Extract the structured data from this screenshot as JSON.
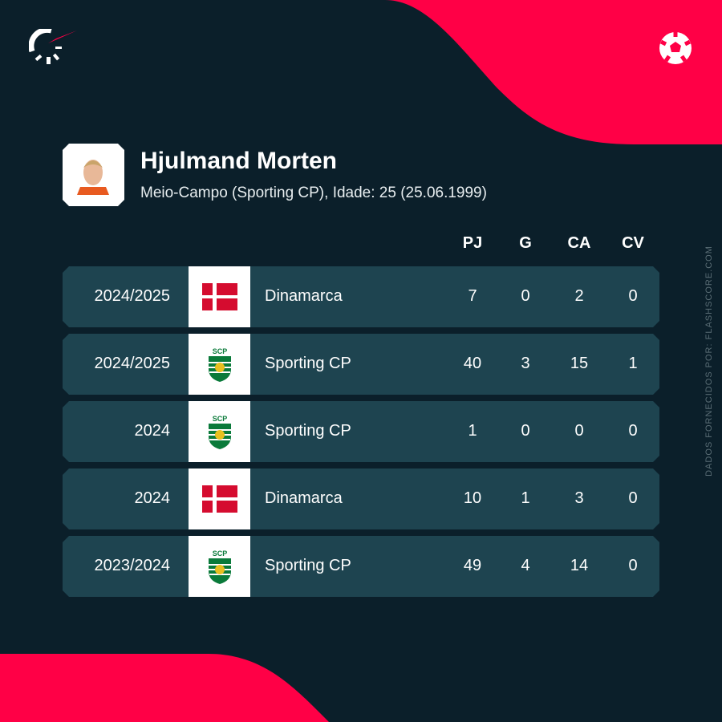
{
  "brand": {
    "accent": "#ff0046",
    "logo": "flashscore-logo",
    "sport_icon": "football-icon"
  },
  "player": {
    "name": "Hjulmand Morten",
    "details": "Meio-Campo (Sporting CP), Idade: 25 (25.06.1999)"
  },
  "columns": [
    "PJ",
    "G",
    "CA",
    "CV"
  ],
  "rows": [
    {
      "season": "2024/2025",
      "team": "Dinamarca",
      "logo": "denmark-flag",
      "PJ": "7",
      "G": "0",
      "CA": "2",
      "CV": "0"
    },
    {
      "season": "2024/2025",
      "team": "Sporting CP",
      "logo": "sporting-cp-crest",
      "PJ": "40",
      "G": "3",
      "CA": "15",
      "CV": "1"
    },
    {
      "season": "2024",
      "team": "Sporting CP",
      "logo": "sporting-cp-crest",
      "PJ": "1",
      "G": "0",
      "CA": "0",
      "CV": "0"
    },
    {
      "season": "2024",
      "team": "Dinamarca",
      "logo": "denmark-flag",
      "PJ": "10",
      "G": "1",
      "CA": "3",
      "CV": "0"
    },
    {
      "season": "2023/2024",
      "team": "Sporting CP",
      "logo": "sporting-cp-crest",
      "PJ": "49",
      "G": "4",
      "CA": "14",
      "CV": "0"
    }
  ],
  "credit": "DADOS FORNECIDOS POR: FLASHSCORE.COM"
}
